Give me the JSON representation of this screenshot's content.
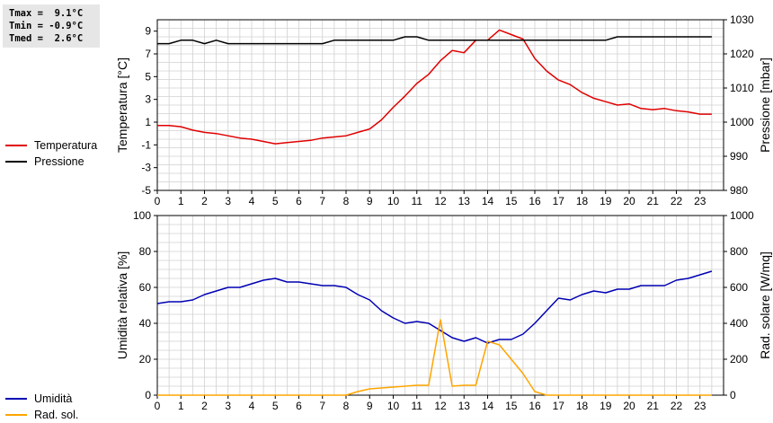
{
  "stats": {
    "tmax": "Tmax =  9.1°C",
    "tmin": "Tmin = -0.9°C",
    "tmed": "Tmed =  2.6°C"
  },
  "legend_top": [
    {
      "label": "Temperatura",
      "color": "#e00000"
    },
    {
      "label": "Pressione",
      "color": "#000000"
    }
  ],
  "legend_bottom": [
    {
      "label": "Umidità",
      "color": "#0000b4"
    },
    {
      "label": "Rad. sol.",
      "color": "#ffa500"
    }
  ],
  "colors": {
    "grid": "#d0d0d0",
    "temperature": "#e00000",
    "pressure": "#000000",
    "humidity": "#0000b4",
    "radiation": "#ffa500"
  },
  "chart_data": [
    {
      "type": "line",
      "xlabel": "",
      "xlim": [
        0,
        24
      ],
      "xticks": [
        "0",
        "1",
        "2",
        "3",
        "4",
        "5",
        "6",
        "7",
        "8",
        "9",
        "10",
        "11",
        "12",
        "13",
        "14",
        "15",
        "16",
        "17",
        "18",
        "19",
        "20",
        "21",
        "22",
        "23"
      ],
      "ylabel_left": "Temperatura [°C]",
      "ylim_left": [
        -5,
        10
      ],
      "yticks_left": [
        "-5",
        "-3",
        "-1",
        "1",
        "3",
        "5",
        "7",
        "9"
      ],
      "ylabel_right": "Pressione [mbar]",
      "ylim_right": [
        980,
        1030
      ],
      "yticks_right": [
        "980",
        "990",
        "1000",
        "1010",
        "1020",
        "1030"
      ],
      "grid": true,
      "series": [
        {
          "name": "Temperatura",
          "axis": "left",
          "color": "#e00000",
          "x": [
            0,
            0.5,
            1,
            1.5,
            2,
            2.5,
            3,
            3.5,
            4,
            4.5,
            5,
            5.5,
            6,
            6.5,
            7,
            7.5,
            8,
            8.5,
            9,
            9.5,
            10,
            10.5,
            11,
            11.5,
            12,
            12.5,
            13,
            13.5,
            14,
            14.5,
            15,
            15.5,
            16,
            16.5,
            17,
            17.5,
            18,
            18.5,
            19,
            19.5,
            20,
            20.5,
            21,
            21.5,
            22,
            22.5,
            23,
            23.5
          ],
          "y": [
            0.7,
            0.7,
            0.6,
            0.3,
            0.1,
            0.0,
            -0.2,
            -0.4,
            -0.5,
            -0.7,
            -0.9,
            -0.8,
            -0.7,
            -0.6,
            -0.4,
            -0.3,
            -0.2,
            0.1,
            0.4,
            1.2,
            2.3,
            3.3,
            4.4,
            5.2,
            6.4,
            7.3,
            7.1,
            8.2,
            8.2,
            9.1,
            8.7,
            8.3,
            6.6,
            5.5,
            4.7,
            4.3,
            3.6,
            3.1,
            2.8,
            2.5,
            2.6,
            2.2,
            2.1,
            2.2,
            2.0,
            1.9,
            1.7,
            1.7
          ]
        },
        {
          "name": "Pressione",
          "axis": "right",
          "color": "#000000",
          "x": [
            0,
            0.5,
            1,
            1.5,
            2,
            2.5,
            3,
            3.5,
            4,
            4.5,
            5,
            5.5,
            6,
            6.5,
            7,
            7.5,
            8,
            8.5,
            9,
            9.5,
            10,
            10.5,
            11,
            11.5,
            12,
            12.5,
            13,
            13.5,
            14,
            14.5,
            15,
            15.5,
            16,
            16.5,
            17,
            17.5,
            18,
            18.5,
            19,
            19.5,
            20,
            20.5,
            21,
            21.5,
            22,
            22.5,
            23,
            23.5
          ],
          "y": [
            1023,
            1023,
            1024,
            1024,
            1023,
            1024,
            1023,
            1023,
            1023,
            1023,
            1023,
            1023,
            1023,
            1023,
            1023,
            1024,
            1024,
            1024,
            1024,
            1024,
            1024,
            1025,
            1025,
            1024,
            1024,
            1024,
            1024,
            1024,
            1024,
            1024,
            1024,
            1024,
            1024,
            1024,
            1024,
            1024,
            1024,
            1024,
            1024,
            1025,
            1025,
            1025,
            1025,
            1025,
            1025,
            1025,
            1025,
            1025
          ]
        }
      ]
    },
    {
      "type": "line",
      "xlabel": "",
      "xlim": [
        0,
        24
      ],
      "xticks": [
        "0",
        "1",
        "2",
        "3",
        "4",
        "5",
        "6",
        "7",
        "8",
        "9",
        "10",
        "11",
        "12",
        "13",
        "14",
        "15",
        "16",
        "17",
        "18",
        "19",
        "20",
        "21",
        "22",
        "23"
      ],
      "ylabel_left": "Umidità relativa [%]",
      "ylim_left": [
        0,
        100
      ],
      "yticks_left": [
        "0",
        "20",
        "40",
        "60",
        "80",
        "100"
      ],
      "ylabel_right": "Rad. solare [W/mq]",
      "ylim_right": [
        0,
        1000
      ],
      "yticks_right": [
        "0",
        "200",
        "400",
        "600",
        "800",
        "1000"
      ],
      "grid": true,
      "series": [
        {
          "name": "Umidità",
          "axis": "left",
          "color": "#0000b4",
          "x": [
            0,
            0.5,
            1,
            1.5,
            2,
            2.5,
            3,
            3.5,
            4,
            4.5,
            5,
            5.5,
            6,
            6.5,
            7,
            7.5,
            8,
            8.5,
            9,
            9.5,
            10,
            10.5,
            11,
            11.5,
            12,
            12.5,
            13,
            13.5,
            14,
            14.5,
            15,
            15.5,
            16,
            16.5,
            17,
            17.5,
            18,
            18.5,
            19,
            19.5,
            20,
            20.5,
            21,
            21.5,
            22,
            22.5,
            23,
            23.5
          ],
          "y": [
            51,
            52,
            52,
            53,
            56,
            58,
            60,
            60,
            62,
            64,
            65,
            63,
            63,
            62,
            61,
            61,
            60,
            56,
            53,
            47,
            43,
            40,
            41,
            40,
            36,
            32,
            30,
            32,
            29,
            31,
            31,
            34,
            40,
            47,
            54,
            53,
            56,
            58,
            57,
            59,
            59,
            61,
            61,
            61,
            64,
            65,
            67,
            69
          ]
        },
        {
          "name": "Rad. sol.",
          "axis": "right",
          "color": "#ffa500",
          "x": [
            0,
            1,
            2,
            3,
            4,
            5,
            6,
            7,
            8,
            8.5,
            9,
            9.5,
            10,
            10.5,
            11,
            11.5,
            12,
            12.5,
            13,
            13.5,
            14,
            14.5,
            15,
            15.5,
            16,
            16.5,
            17,
            18,
            19,
            20,
            21,
            22,
            23,
            23.5
          ],
          "y": [
            0,
            0,
            0,
            0,
            0,
            0,
            0,
            0,
            0,
            20,
            35,
            40,
            45,
            50,
            55,
            55,
            420,
            50,
            55,
            55,
            300,
            280,
            200,
            120,
            20,
            0,
            0,
            0,
            0,
            0,
            0,
            0,
            0,
            0
          ]
        }
      ]
    }
  ]
}
